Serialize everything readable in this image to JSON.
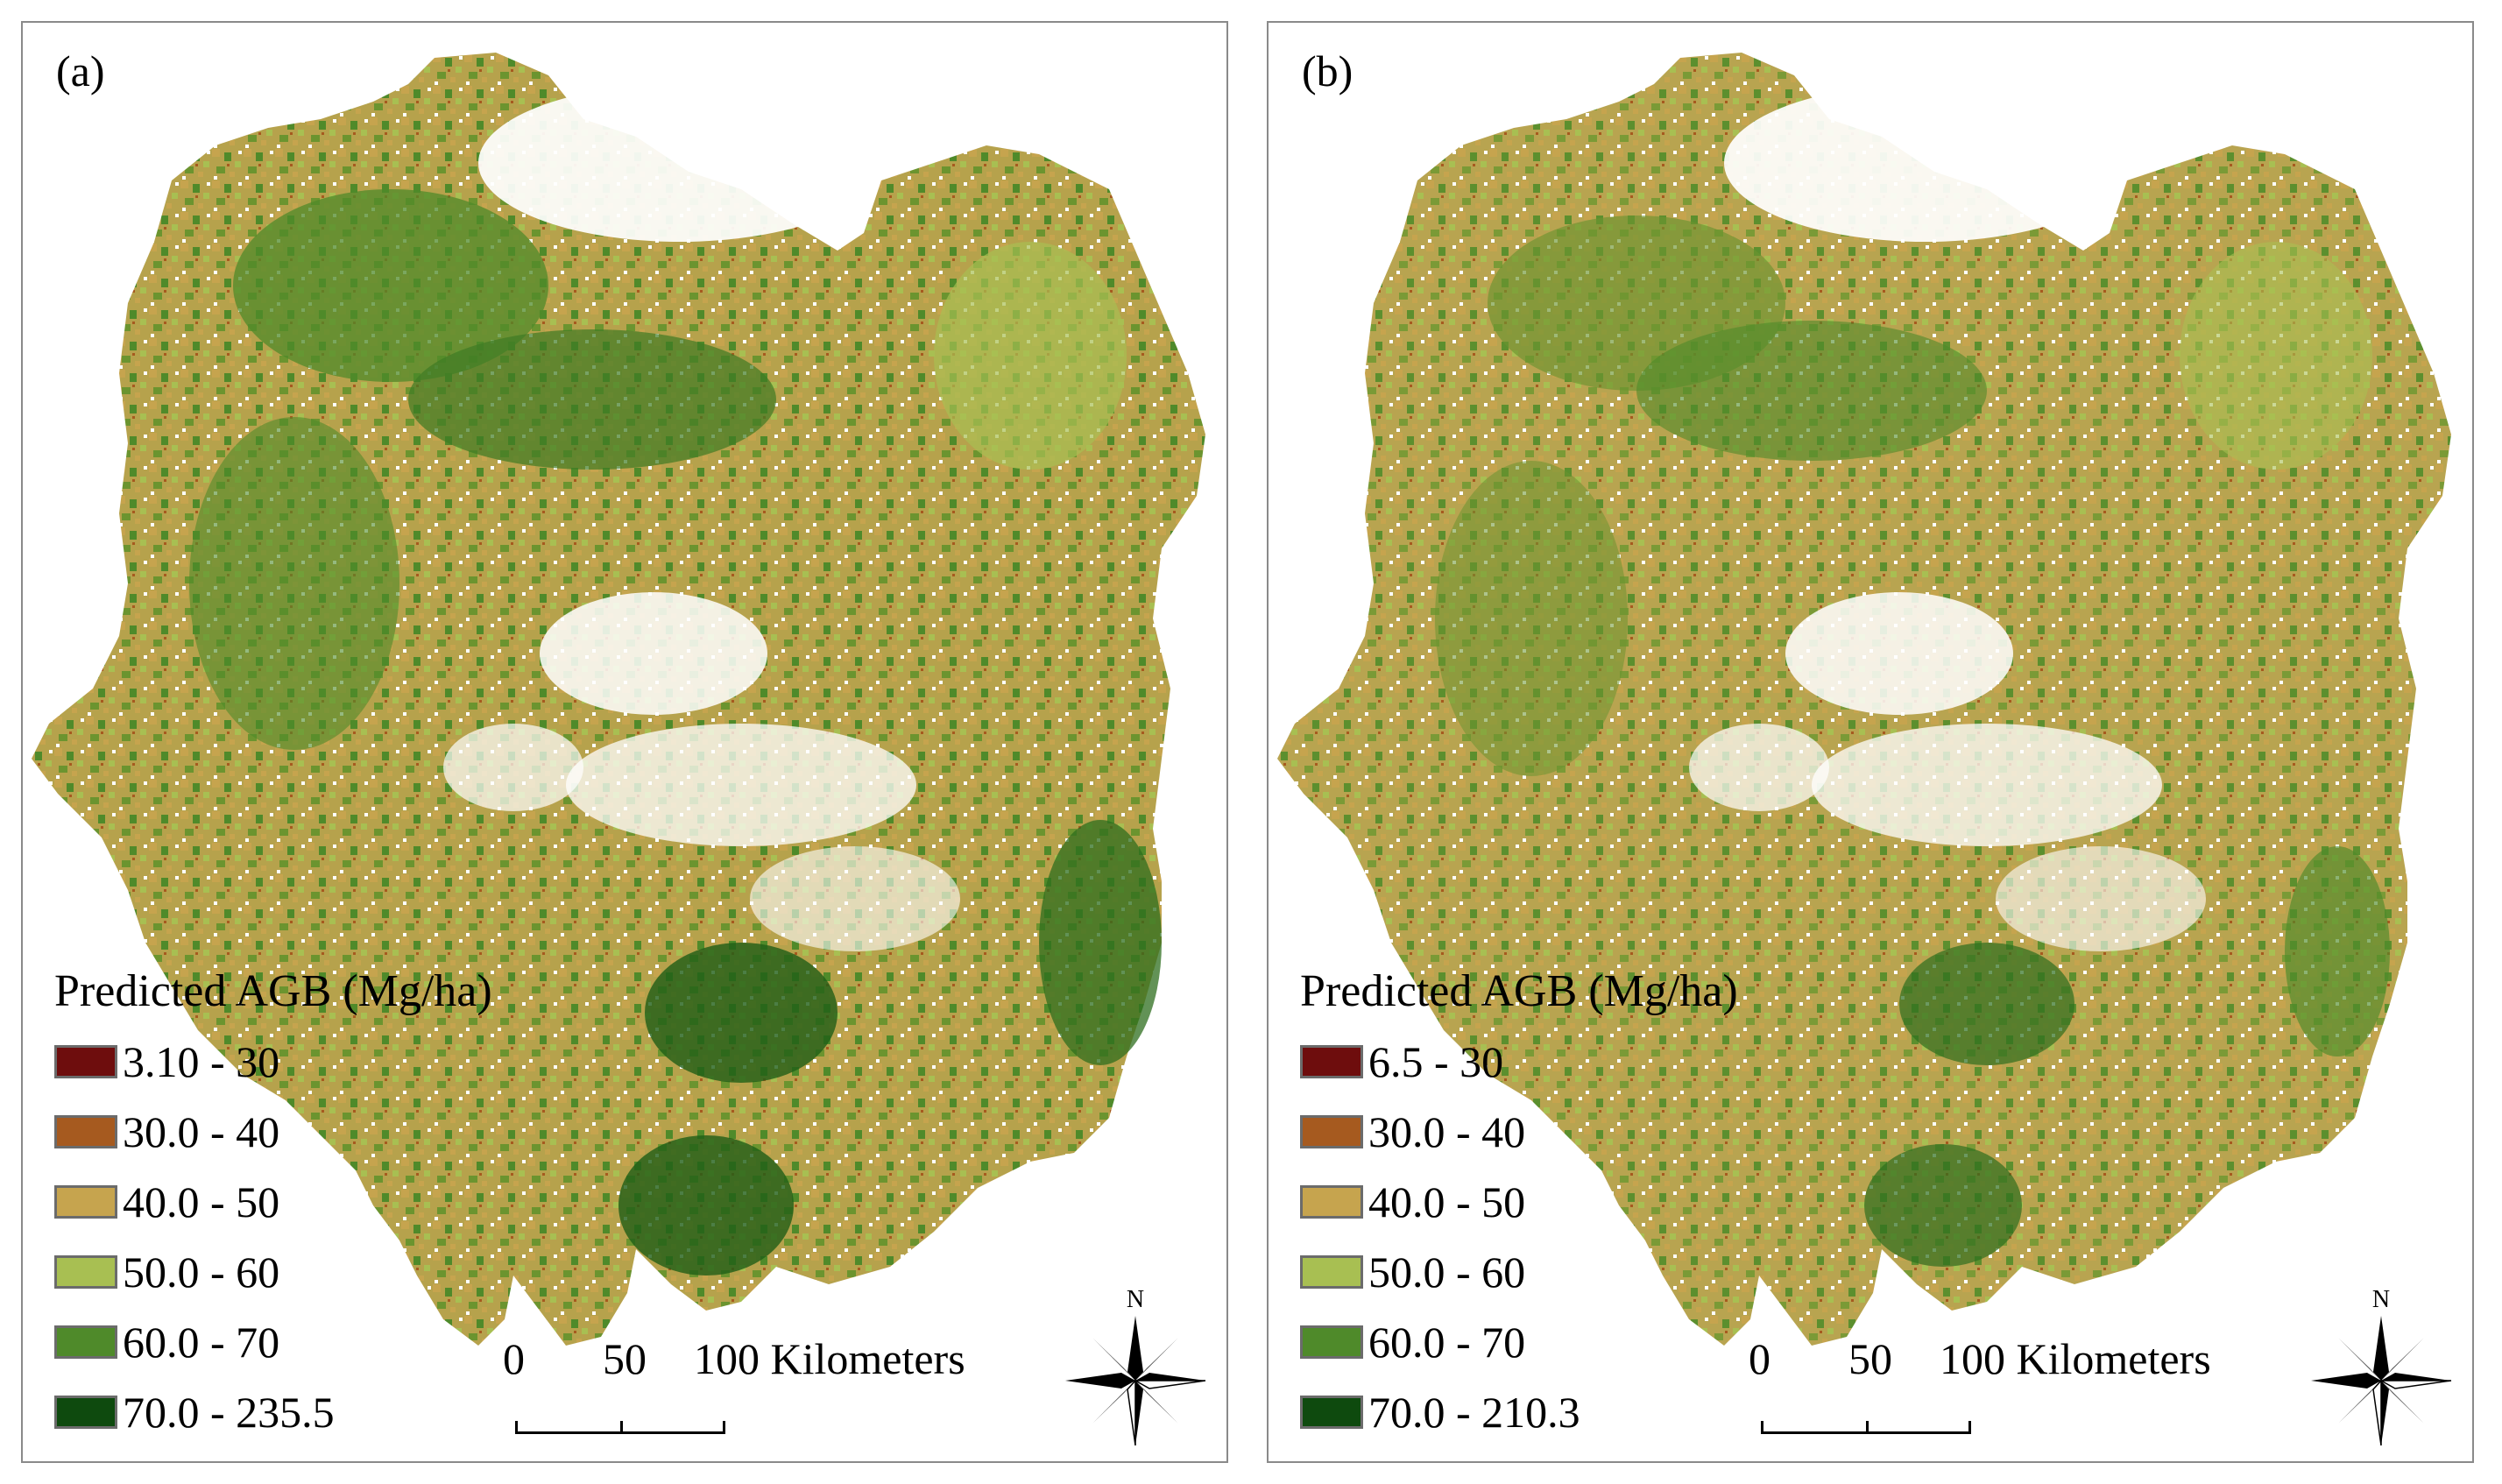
{
  "panels": [
    {
      "label": "(a)",
      "legend": {
        "title": "Predicted AGB (Mg/ha)",
        "classes": [
          {
            "label": "3.10 - 30",
            "color": "#6e0d0d"
          },
          {
            "label": "30.0 - 40",
            "color": "#a65a1f"
          },
          {
            "label": "40.0 - 50",
            "color": "#c6a44e"
          },
          {
            "label": "50.0 - 60",
            "color": "#a8bf52"
          },
          {
            "label": "60.0 - 70",
            "color": "#4f8a2a"
          },
          {
            "label": "70.0 - 235.5",
            "color": "#0e4a0e"
          }
        ]
      },
      "scale": {
        "labels": [
          "0",
          "50",
          "100 Kilometers"
        ]
      },
      "north_label": "N"
    },
    {
      "label": "(b)",
      "legend": {
        "title": "Predicted AGB (Mg/ha)",
        "classes": [
          {
            "label": "6.5 - 30",
            "color": "#6e0d0d"
          },
          {
            "label": "30.0 - 40",
            "color": "#a65a1f"
          },
          {
            "label": "40.0 - 50",
            "color": "#c6a44e"
          },
          {
            "label": "50.0 - 60",
            "color": "#a8bf52"
          },
          {
            "label": "60.0 - 70",
            "color": "#4f8a2a"
          },
          {
            "label": "70.0 - 210.3",
            "color": "#0e4a0e"
          }
        ]
      },
      "scale": {
        "labels": [
          "0",
          "50",
          "100 Kilometers"
        ]
      },
      "north_label": "N"
    }
  ]
}
